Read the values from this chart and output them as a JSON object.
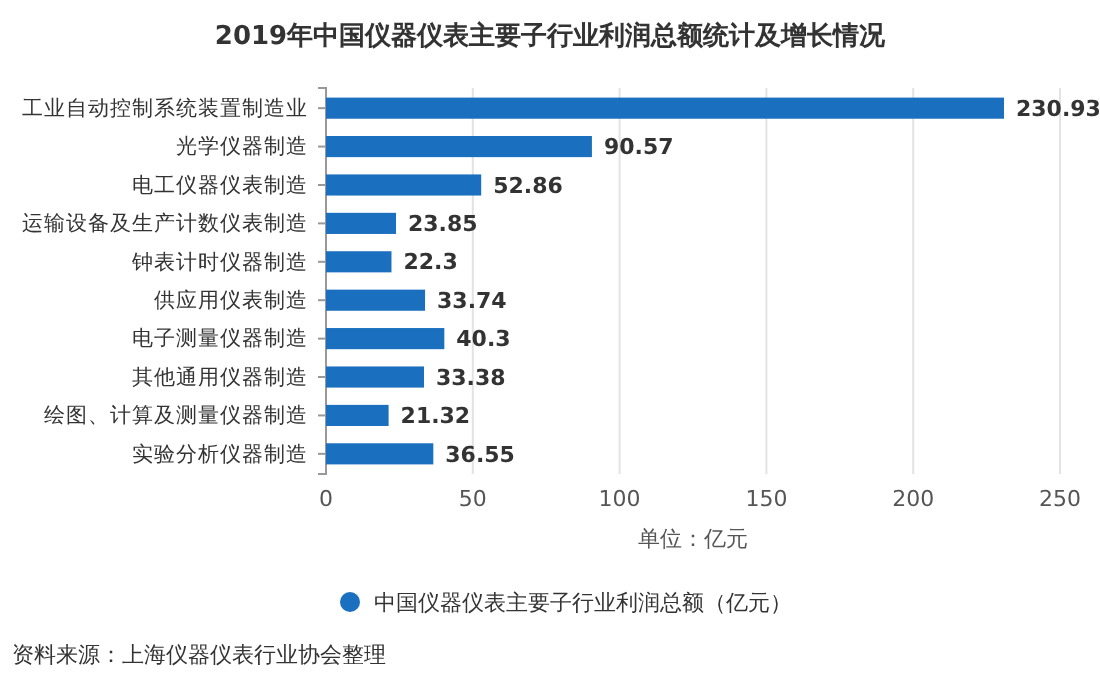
{
  "chart_data": {
    "type": "bar",
    "orientation": "horizontal",
    "title": "2019年中国仪器仪表主要子行业利润总额统计及增长情况",
    "categories": [
      "工业自动控制系统装置制造业",
      "光学仪器制造",
      "电工仪器仪表制造",
      "运输设备及生产计数仪表制造",
      "钟表计时仪器制造",
      "供应用仪表制造",
      "电子测量仪器制造",
      "其他通用仪器制造",
      "绘图、计算及测量仪器制造",
      "实验分析仪器制造"
    ],
    "series": [
      {
        "name": "中国仪器仪表主要子行业利润总额（亿元）",
        "color": "#1a6fbf",
        "values": [
          230.93,
          90.57,
          52.86,
          23.85,
          22.3,
          33.74,
          40.3,
          33.38,
          21.32,
          36.55
        ]
      }
    ],
    "xlim": [
      0,
      250
    ],
    "xticks": [
      0,
      50,
      100,
      150,
      200,
      250
    ],
    "xlabel": "单位：亿元",
    "grid": "x",
    "legend": "bottom",
    "data_labels": true,
    "annotations": [
      "资料来源：上海仪器仪表行业协会整理"
    ]
  }
}
